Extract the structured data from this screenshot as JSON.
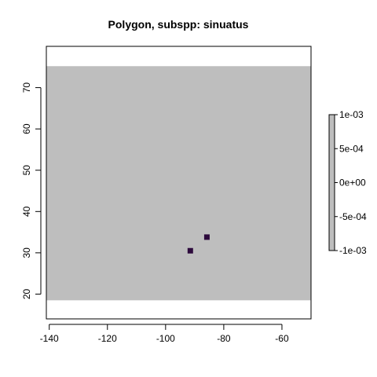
{
  "chart_data": {
    "type": "heatmap",
    "title": "Polygon, subspp: sinuatus",
    "xlabel": "",
    "ylabel": "",
    "xlim": [
      -141,
      -50
    ],
    "ylim": [
      14,
      80
    ],
    "x_ticks": [
      -140,
      -120,
      -100,
      -80,
      -60
    ],
    "y_ticks": [
      20,
      30,
      40,
      50,
      60,
      70
    ],
    "grid": false,
    "raster_extent": {
      "x": [
        -141,
        -50
      ],
      "y": [
        18.5,
        75.2
      ]
    },
    "background_value": 0,
    "cells": [
      {
        "x": -91.5,
        "y": 30.5,
        "value": 1
      },
      {
        "x": -85.8,
        "y": 33.8,
        "value": 1
      }
    ],
    "legend": {
      "placement": "right",
      "ticks": [
        "1e-03",
        "5e-04",
        "0e+00",
        "-5e-04",
        "-1e-03"
      ]
    },
    "colors": {
      "background_cells": "#bebebe",
      "presence_cells": "#2d0a3c",
      "legend_fill": "#bebebe",
      "axis": "#000000"
    }
  }
}
